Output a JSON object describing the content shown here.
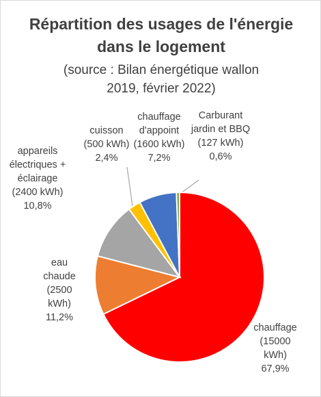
{
  "chart_data": {
    "type": "pie",
    "title": "Répartition des usages de l'énergie dans le logement",
    "subtitle": "(source : Bilan énergétique wallon 2019, février 2022)",
    "categories": [
      "chauffage",
      "eau chaude",
      "appareils électriques + éclairage",
      "cuisson",
      "chauffage d'appoint",
      "Carburant jardin et BBQ"
    ],
    "kwh_labels": [
      "(15000 kWh)",
      "(2500 kWh)",
      "(2400 kWh)",
      "(500 kWh)",
      "(1600 kWh)",
      "(127 kWh)"
    ],
    "values": [
      67.9,
      11.2,
      10.8,
      2.4,
      7.2,
      0.6
    ],
    "value_labels": [
      "67,9%",
      "11,2%",
      "10,8%",
      "2,4%",
      "7,2%",
      "0,6%"
    ],
    "colors": [
      "#ff0000",
      "#ed7d31",
      "#a5a5a5",
      "#ffc000",
      "#4472c4",
      "#70ad47"
    ]
  }
}
